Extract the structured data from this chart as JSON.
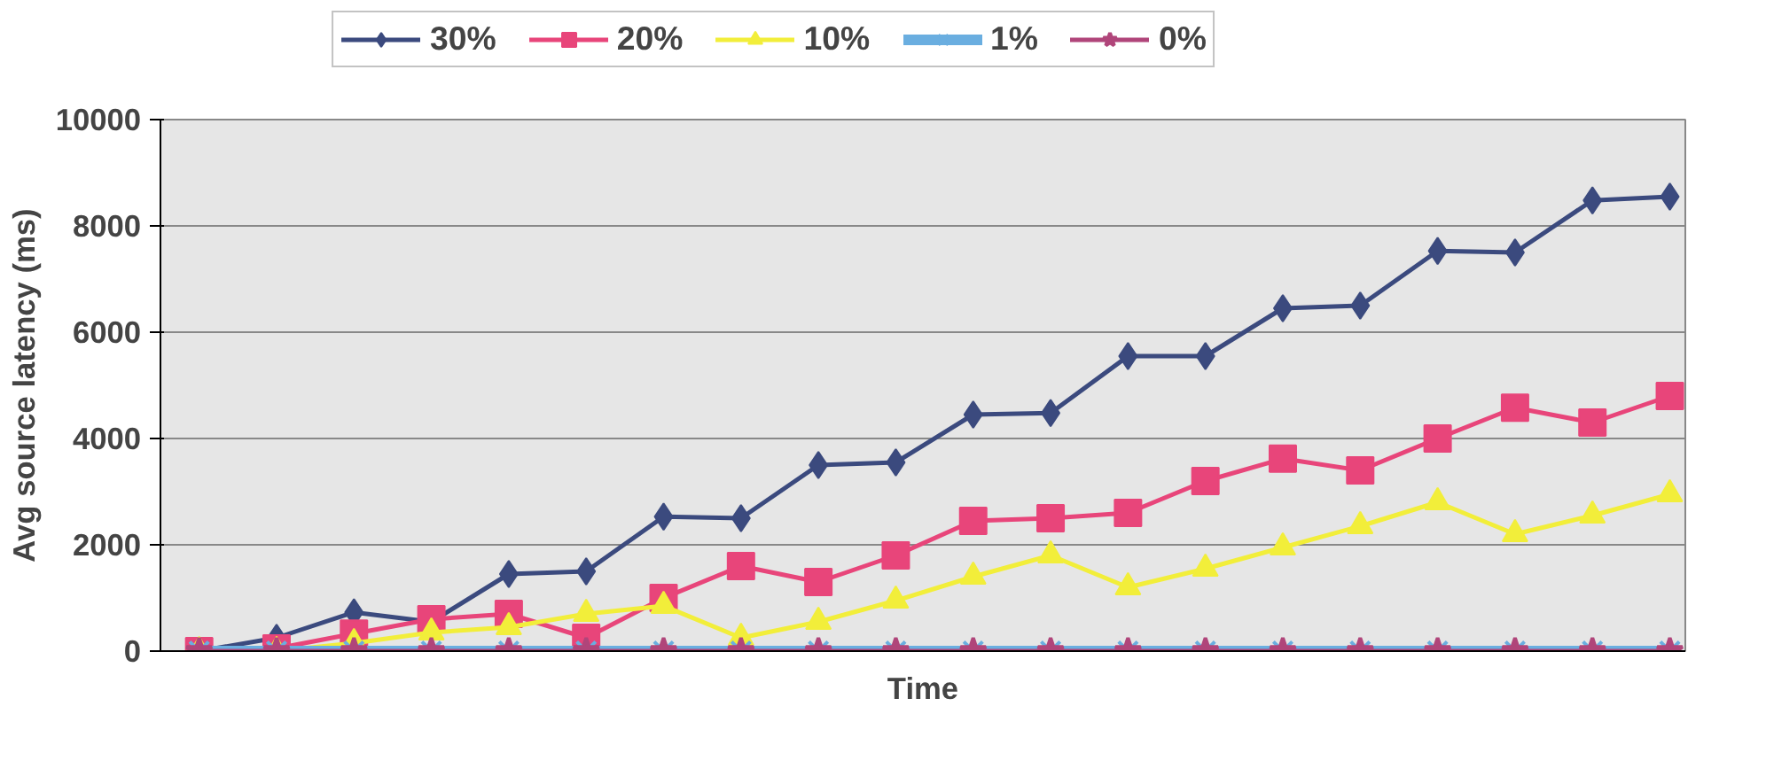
{
  "chart_data": {
    "type": "line",
    "xlabel": "Time",
    "ylabel": "Avg source latency (ms)",
    "categories": [
      null,
      null,
      null,
      null,
      null,
      null,
      null,
      null,
      null,
      null,
      null,
      null,
      null,
      null,
      null,
      null,
      null,
      null,
      null,
      null
    ],
    "ylim": [
      0,
      10000
    ],
    "yticks": [
      0,
      2000,
      4000,
      6000,
      8000,
      10000
    ],
    "grid": "y",
    "legend": "top",
    "tick_labels": "y",
    "series": [
      {
        "name": "30%",
        "color": "#3b4a7e",
        "marker": "diamond",
        "values": [
          0,
          250,
          730,
          550,
          1450,
          1500,
          2530,
          2500,
          3500,
          3550,
          4450,
          4480,
          5550,
          5550,
          6450,
          6500,
          7530,
          7500,
          8480,
          8550
        ]
      },
      {
        "name": "20%",
        "color": "#e8457a",
        "marker": "square",
        "values": [
          0,
          50,
          330,
          600,
          700,
          250,
          1000,
          1600,
          1300,
          1800,
          2450,
          2500,
          2600,
          3200,
          3620,
          3400,
          4000,
          4580,
          4300,
          4800
        ]
      },
      {
        "name": "10%",
        "color": "#f2ee3a",
        "marker": "triangle",
        "values": [
          0,
          0,
          150,
          350,
          450,
          700,
          850,
          250,
          550,
          950,
          1400,
          1800,
          1200,
          1550,
          1950,
          2350,
          2800,
          2200,
          2550,
          2950
        ]
      },
      {
        "name": "1%",
        "color": "#6aaee0",
        "marker": "cross",
        "values": [
          0,
          0,
          0,
          0,
          0,
          0,
          0,
          0,
          0,
          0,
          0,
          0,
          0,
          0,
          0,
          0,
          0,
          0,
          0,
          0
        ]
      },
      {
        "name": "0%",
        "color": "#b0457a",
        "marker": "star",
        "values": [
          0,
          0,
          0,
          0,
          0,
          0,
          0,
          0,
          0,
          0,
          0,
          0,
          0,
          0,
          0,
          0,
          0,
          0,
          0,
          0
        ]
      }
    ]
  }
}
